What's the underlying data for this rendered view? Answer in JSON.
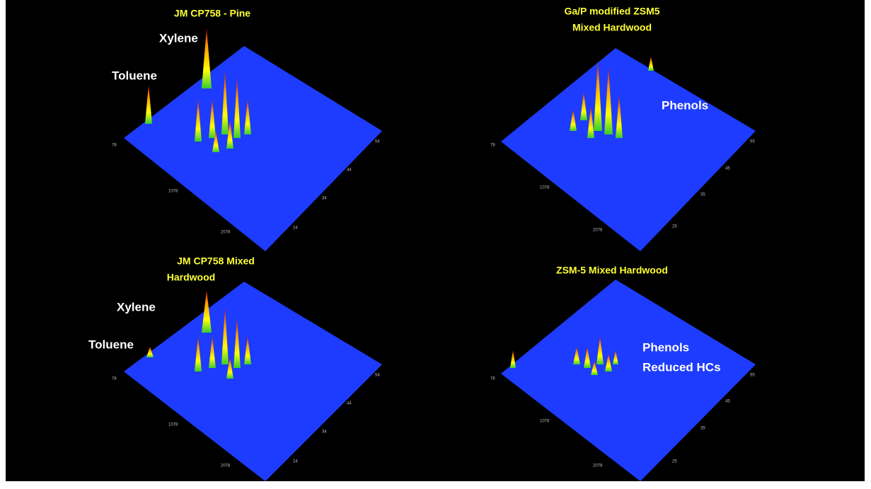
{
  "panels": [
    {
      "title_lines": [
        "JM CP758 - Pine"
      ],
      "annotations": [
        "Xylene",
        "Toluene"
      ],
      "x_ticks": [
        "78",
        "1078",
        "2078"
      ],
      "y_ticks": [
        "54",
        "44",
        "34",
        "24"
      ]
    },
    {
      "title_lines": [
        "Ga/P modified ZSM5",
        "Mixed Hardwood"
      ],
      "annotations": [
        "Phenols"
      ],
      "x_ticks": [
        "78",
        "1078",
        "2078"
      ],
      "y_ticks": [
        "55",
        "45",
        "35",
        "25"
      ]
    },
    {
      "title_lines": [
        "JM CP758 Mixed",
        "Hardwood"
      ],
      "annotations": [
        "Xylene",
        "Toluene"
      ],
      "x_ticks": [
        "78",
        "1078",
        "2078"
      ],
      "y_ticks": [
        "54",
        "44",
        "34",
        "24"
      ]
    },
    {
      "title_lines": [
        "ZSM-5 Mixed Hardwood"
      ],
      "annotations": [
        "Phenols",
        "Reduced HCs"
      ],
      "x_ticks": [
        "78",
        "1078",
        "2078"
      ],
      "y_ticks": [
        "55",
        "45",
        "35",
        "25"
      ]
    }
  ]
}
